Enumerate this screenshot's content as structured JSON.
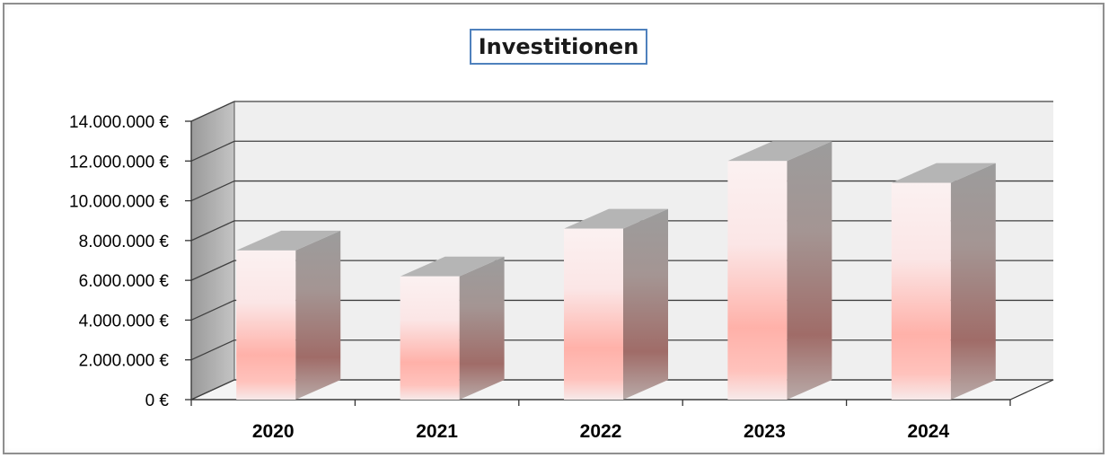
{
  "chart_data": {
    "type": "bar",
    "title": "Investitionen",
    "categories": [
      "2020",
      "2021",
      "2022",
      "2023",
      "2024"
    ],
    "values": [
      7500000,
      6200000,
      8600000,
      12000000,
      10900000
    ],
    "ylim": [
      0,
      14000000
    ],
    "yticks": [
      "0 €",
      "2.000.000 €",
      "4.000.000 €",
      "6.000.000 €",
      "8.000.000 €",
      "10.000.000 €",
      "12.000.000 €",
      "14.000.000 €"
    ],
    "xlabel": "",
    "ylabel": "",
    "grid": true,
    "style": "3d-column",
    "colors": {
      "bar_light": "#fbeeee",
      "bar_mid": "#ffb3ac",
      "bar_side": "#9a6f6b",
      "bar_top": "#b5b5b5",
      "grid": "#404040",
      "wall": "#efefef"
    }
  }
}
